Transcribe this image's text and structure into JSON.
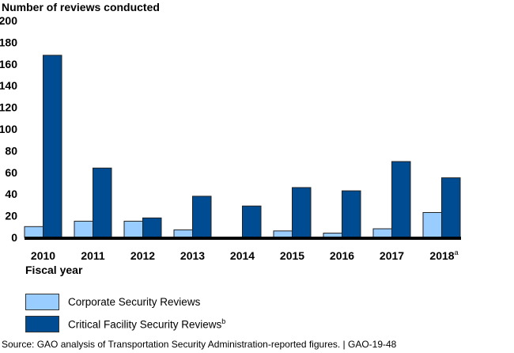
{
  "chart_data": {
    "type": "bar",
    "title": "",
    "ylabel": "Number of reviews conducted",
    "xlabel": "Fiscal year",
    "ylim": [
      0,
      200
    ],
    "yticks": [
      0,
      20,
      40,
      60,
      80,
      100,
      120,
      140,
      160,
      180,
      200
    ],
    "grid": false,
    "categories": [
      "2010",
      "2011",
      "2012",
      "2013",
      "2014",
      "2015",
      "2016",
      "2017",
      "2018"
    ],
    "category_footnotes": [
      "",
      "",
      "",
      "",
      "",
      "",
      "",
      "",
      "a"
    ],
    "series": [
      {
        "name": "Corporate Security Reviews",
        "footnote": "",
        "color": "#99ccff",
        "values": [
          10,
          15,
          15,
          7,
          0,
          6,
          4,
          8,
          23
        ]
      },
      {
        "name": "Critical Facility Security Reviews",
        "footnote": "b",
        "color": "#004c93",
        "values": [
          168,
          64,
          18,
          38,
          29,
          46,
          43,
          70,
          55
        ]
      }
    ],
    "legend_position": "bottom-left"
  },
  "source": "Source: GAO analysis of Transportation Security Administration-reported figures.  |  GAO-19-48"
}
